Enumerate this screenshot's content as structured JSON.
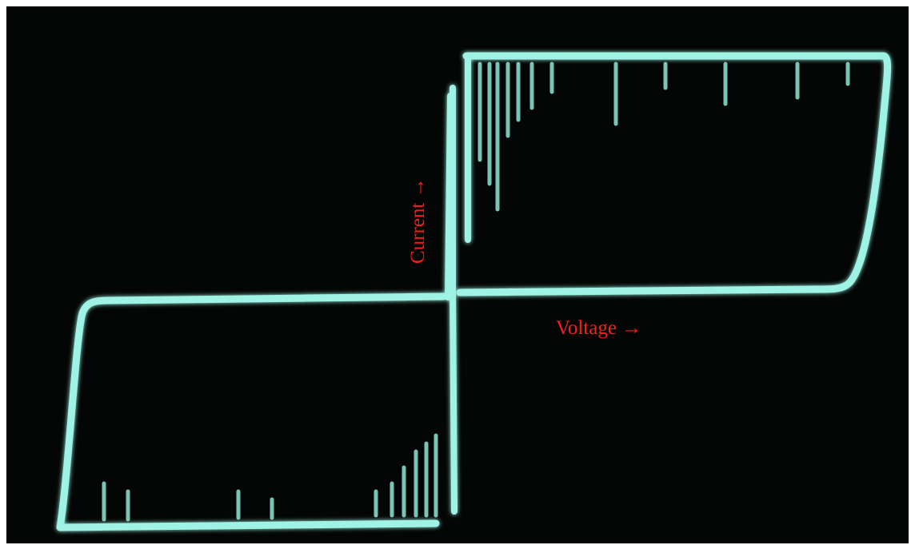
{
  "labels": {
    "current": "Current →",
    "voltage": "Voltage →"
  }
}
